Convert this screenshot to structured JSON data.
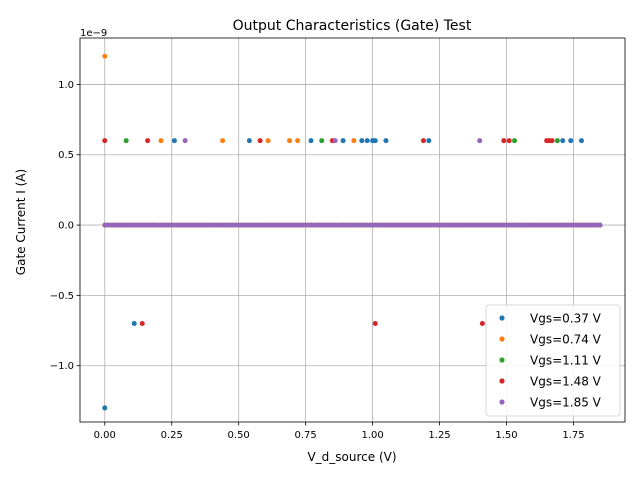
{
  "chart_data": {
    "type": "scatter",
    "title": "Output Characteristics (Gate) Test",
    "xlabel": "V_d_source (V)",
    "ylabel": "Gate Current I (A)",
    "y_offset_text": "1e−9",
    "y_scale": 1e-09,
    "xlim": [
      -0.0925,
      1.9425
    ],
    "ylim": [
      -1.4e-09,
      1.33e-09
    ],
    "x_ticks": [
      0.0,
      0.25,
      0.5,
      0.75,
      1.0,
      1.25,
      1.5,
      1.75
    ],
    "x_tick_labels": [
      "0.00",
      "0.25",
      "0.50",
      "0.75",
      "1.00",
      "1.25",
      "1.50",
      "1.75"
    ],
    "y_ticks": [
      -1e-09,
      -5e-10,
      0.0,
      5e-10,
      1e-09
    ],
    "y_tick_labels": [
      "−1.0",
      "−0.5",
      "0.0",
      "0.5",
      "1.0"
    ],
    "grid": true,
    "legend_position": "bottom-right",
    "baseline_range": [
      0.0,
      1.85
    ],
    "baseline_step": 0.01,
    "series": [
      {
        "name": "Vgs=0.37 V",
        "color": "#1f77b4",
        "outliers": [
          {
            "x": 0.0,
            "y": -1.3e-09
          },
          {
            "x": 0.11,
            "y": -7e-10
          },
          {
            "x": 0.26,
            "y": 6e-10
          },
          {
            "x": 0.54,
            "y": 6e-10
          },
          {
            "x": 0.77,
            "y": 6e-10
          },
          {
            "x": 0.89,
            "y": 6e-10
          },
          {
            "x": 0.96,
            "y": 6e-10
          },
          {
            "x": 0.98,
            "y": 6e-10
          },
          {
            "x": 1.0,
            "y": 6e-10
          },
          {
            "x": 1.01,
            "y": 6e-10
          },
          {
            "x": 1.05,
            "y": 6e-10
          },
          {
            "x": 1.21,
            "y": 6e-10
          },
          {
            "x": 1.71,
            "y": 6e-10
          },
          {
            "x": 1.74,
            "y": 6e-10
          },
          {
            "x": 1.78,
            "y": 6e-10
          }
        ]
      },
      {
        "name": "Vgs=0.74 V",
        "color": "#ff7f0e",
        "outliers": [
          {
            "x": 0.0,
            "y": 1.2e-09
          },
          {
            "x": 0.21,
            "y": 6e-10
          },
          {
            "x": 0.44,
            "y": 6e-10
          },
          {
            "x": 0.61,
            "y": 6e-10
          },
          {
            "x": 0.69,
            "y": 6e-10
          },
          {
            "x": 0.72,
            "y": 6e-10
          },
          {
            "x": 0.93,
            "y": 6e-10
          }
        ]
      },
      {
        "name": "Vgs=1.11 V",
        "color": "#2ca02c",
        "outliers": [
          {
            "x": 0.08,
            "y": 6e-10
          },
          {
            "x": 0.81,
            "y": 6e-10
          },
          {
            "x": 1.53,
            "y": 6e-10
          },
          {
            "x": 1.69,
            "y": 6e-10
          }
        ]
      },
      {
        "name": "Vgs=1.48 V",
        "color": "#d62728",
        "outliers": [
          {
            "x": 0.0,
            "y": 6e-10
          },
          {
            "x": 0.14,
            "y": -7e-10
          },
          {
            "x": 0.16,
            "y": 6e-10
          },
          {
            "x": 0.58,
            "y": 6e-10
          },
          {
            "x": 0.85,
            "y": 6e-10
          },
          {
            "x": 1.01,
            "y": -7e-10
          },
          {
            "x": 1.19,
            "y": 6e-10
          },
          {
            "x": 1.41,
            "y": -7e-10
          },
          {
            "x": 1.49,
            "y": 6e-10
          },
          {
            "x": 1.51,
            "y": 6e-10
          },
          {
            "x": 1.65,
            "y": 6e-10
          },
          {
            "x": 1.66,
            "y": 6e-10
          },
          {
            "x": 1.67,
            "y": 6e-10
          }
        ]
      },
      {
        "name": "Vgs=1.85 V",
        "color": "#9467bd",
        "outliers": [
          {
            "x": 0.3,
            "y": 6e-10
          },
          {
            "x": 0.86,
            "y": 6e-10
          },
          {
            "x": 1.4,
            "y": 6e-10
          }
        ]
      }
    ]
  }
}
